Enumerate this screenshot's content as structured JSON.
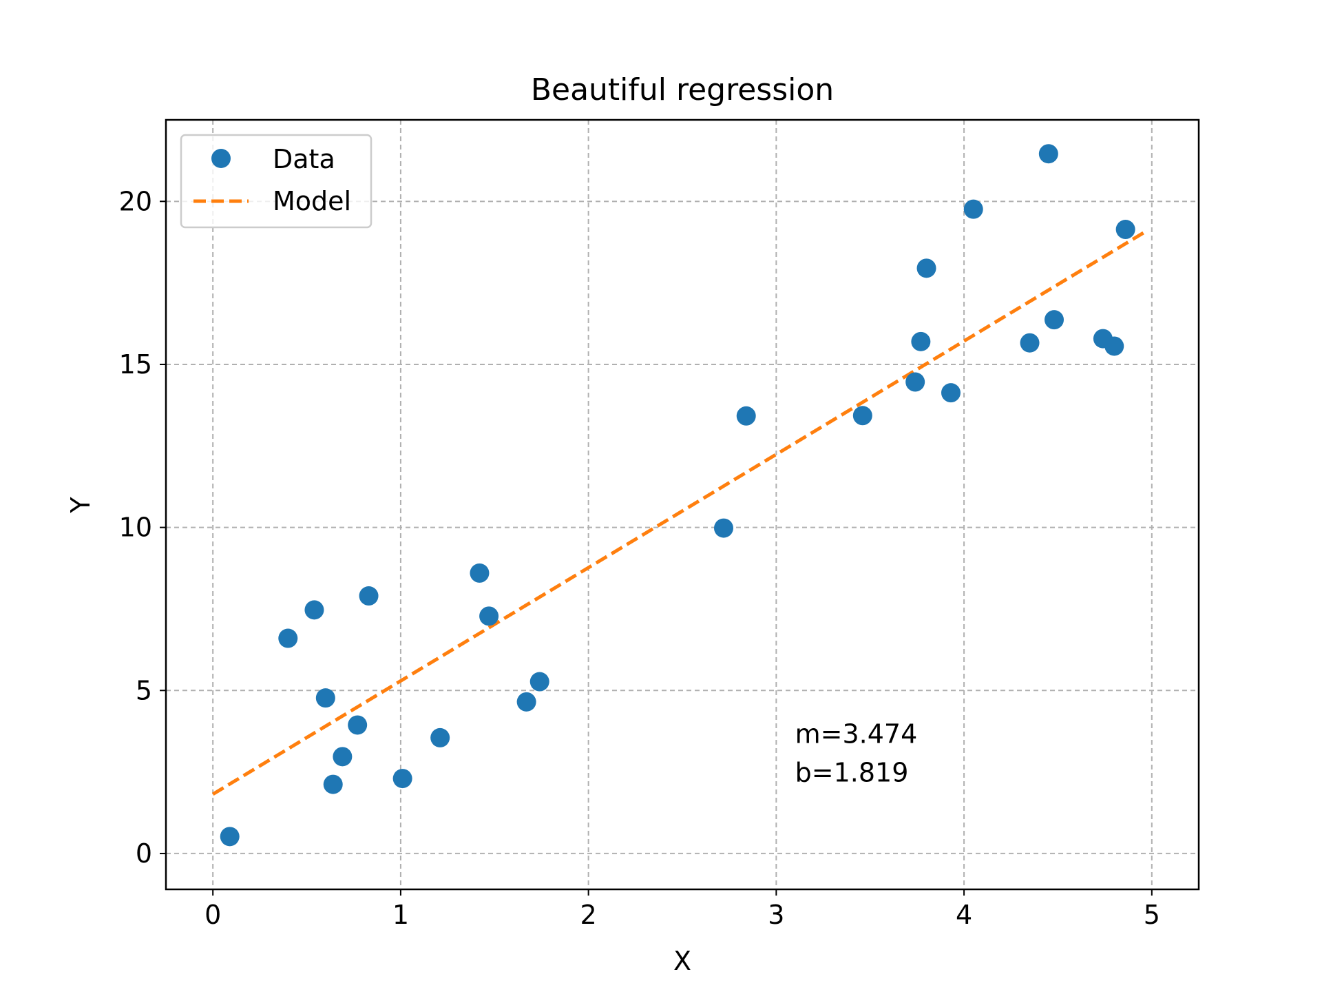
{
  "chart_data": {
    "type": "scatter",
    "title": "Beautiful regression",
    "xlabel": "X",
    "ylabel": "Y",
    "xlim": [
      -0.25,
      5.25
    ],
    "ylim": [
      -1.1,
      22.5
    ],
    "xticks": [
      0,
      1,
      2,
      3,
      4,
      5
    ],
    "yticks": [
      0,
      5,
      10,
      15,
      20
    ],
    "grid": true,
    "legend": "upper-left",
    "series": [
      {
        "name": "Data",
        "kind": "scatter",
        "color": "#1f77b4",
        "points": [
          [
            0.09,
            0.52
          ],
          [
            0.4,
            6.6
          ],
          [
            0.54,
            7.47
          ],
          [
            0.6,
            4.77
          ],
          [
            0.64,
            2.12
          ],
          [
            0.69,
            2.97
          ],
          [
            0.77,
            3.94
          ],
          [
            0.83,
            7.9
          ],
          [
            1.01,
            2.3
          ],
          [
            1.21,
            3.55
          ],
          [
            1.42,
            8.6
          ],
          [
            1.47,
            7.28
          ],
          [
            1.67,
            4.65
          ],
          [
            1.74,
            5.27
          ],
          [
            2.72,
            9.98
          ],
          [
            2.84,
            13.42
          ],
          [
            3.46,
            13.43
          ],
          [
            3.74,
            14.46
          ],
          [
            3.77,
            15.7
          ],
          [
            3.8,
            17.95
          ],
          [
            3.93,
            14.13
          ],
          [
            4.05,
            19.76
          ],
          [
            4.35,
            15.66
          ],
          [
            4.45,
            21.46
          ],
          [
            4.48,
            16.37
          ],
          [
            4.74,
            15.79
          ],
          [
            4.8,
            15.56
          ],
          [
            4.86,
            19.14
          ]
        ]
      },
      {
        "name": "Model",
        "kind": "line",
        "style": "dashed",
        "color": "#ff7f0e",
        "points": [
          [
            0,
            1.819
          ],
          [
            4.98,
            19.12
          ]
        ]
      }
    ],
    "annotation": {
      "lines": [
        "m=3.474",
        "b=1.819"
      ],
      "x": 3.1,
      "y": 3.3
    }
  }
}
